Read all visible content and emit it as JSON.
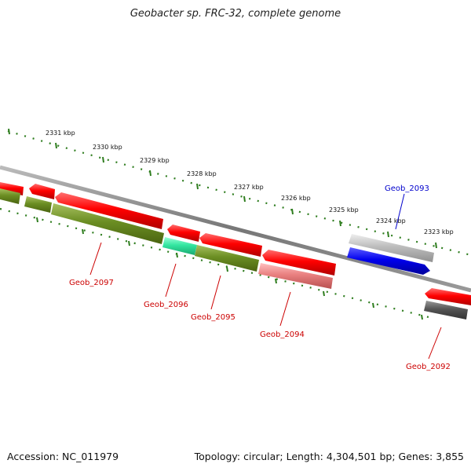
{
  "title": "Geobacter sp. FRC-32, complete genome",
  "footer": {
    "accession": "Accession: NC_011979",
    "summary": "Topology: circular; Length: 4,304,501 bp; Genes: 3,855"
  },
  "colors": {
    "backbone": "#888888",
    "tick": "#2e7d1e",
    "gene_red": "#ff0000",
    "gene_olive": "#6b8e23",
    "gene_teal": "#33e6a0",
    "gene_pink": "#e98080",
    "gene_gray_light": "#bdbdbd",
    "gene_blue": "#0000ee",
    "gene_gray_dark": "#555555",
    "label_red": "#cc0000",
    "label_blue": "#0000cc"
  },
  "kbp_labels": [
    "2331 kbp",
    "2330 kbp",
    "2329 kbp",
    "2328 kbp",
    "2327 kbp",
    "2326 kbp",
    "2325 kbp",
    "2324 kbp",
    "2323 kbp"
  ],
  "gene_labels": [
    "Geob_2097",
    "Geob_2096",
    "Geob_2095",
    "Geob_2094",
    "Geob_2093",
    "Geob_2092"
  ]
}
